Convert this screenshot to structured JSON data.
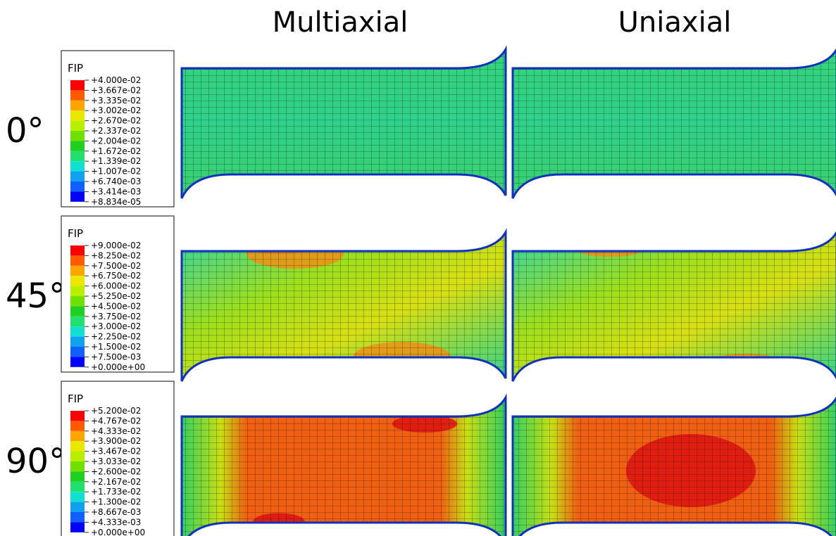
{
  "columns": [
    "Multiaxial",
    "Uniaxial"
  ],
  "rows": [
    {
      "label": "0°",
      "legend": {
        "title": "FIP",
        "labels": [
          "+4.000e-02",
          "+3.667e-02",
          "+3.335e-02",
          "+3.002e-02",
          "+2.670e-02",
          "+2.337e-02",
          "+2.004e-02",
          "+1.672e-02",
          "+1.339e-02",
          "+1.007e-02",
          "+6.740e-03",
          "+3.414e-03",
          "+8.834e-05"
        ]
      }
    },
    {
      "label": "45°",
      "legend": {
        "title": "FIP",
        "labels": [
          "+9.000e-02",
          "+8.250e-02",
          "+7.500e-02",
          "+6.750e-02",
          "+6.000e-02",
          "+5.250e-02",
          "+4.500e-02",
          "+3.750e-02",
          "+3.000e-02",
          "+2.250e-02",
          "+1.500e-02",
          "+7.500e-03",
          "+0.000e+00"
        ]
      }
    },
    {
      "label": "90°",
      "legend": {
        "title": "FIP",
        "labels": [
          "+5.200e-02",
          "+4.767e-02",
          "+4.333e-02",
          "+3.900e-02",
          "+3.467e-02",
          "+3.033e-02",
          "+2.600e-02",
          "+2.167e-02",
          "+1.733e-02",
          "+1.300e-02",
          "+8.667e-03",
          "+4.333e-03",
          "+0.000e+00"
        ]
      }
    }
  ]
}
